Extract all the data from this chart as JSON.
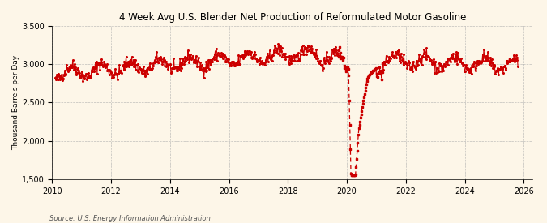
{
  "title": "4 Week Avg U.S. Blender Net Production of Reformulated Motor Gasoline",
  "ylabel": "Thousand Barrels per Day",
  "source": "Source: U.S. Energy Information Administration",
  "background_color": "#fdf6e8",
  "line_color": "#cc0000",
  "ylim": [
    1500,
    3500
  ],
  "yticks": [
    1500,
    2000,
    2500,
    3000,
    3500
  ],
  "xlim_start": 2010.0,
  "xlim_end": 2026.3,
  "xticks": [
    2010,
    2012,
    2014,
    2016,
    2018,
    2020,
    2022,
    2024,
    2026
  ],
  "dashed_start_year": 2019.7,
  "dashed_end_year": 2021.2,
  "title_fontsize": 8.5,
  "tick_fontsize": 7,
  "ylabel_fontsize": 6.5,
  "source_fontsize": 6
}
